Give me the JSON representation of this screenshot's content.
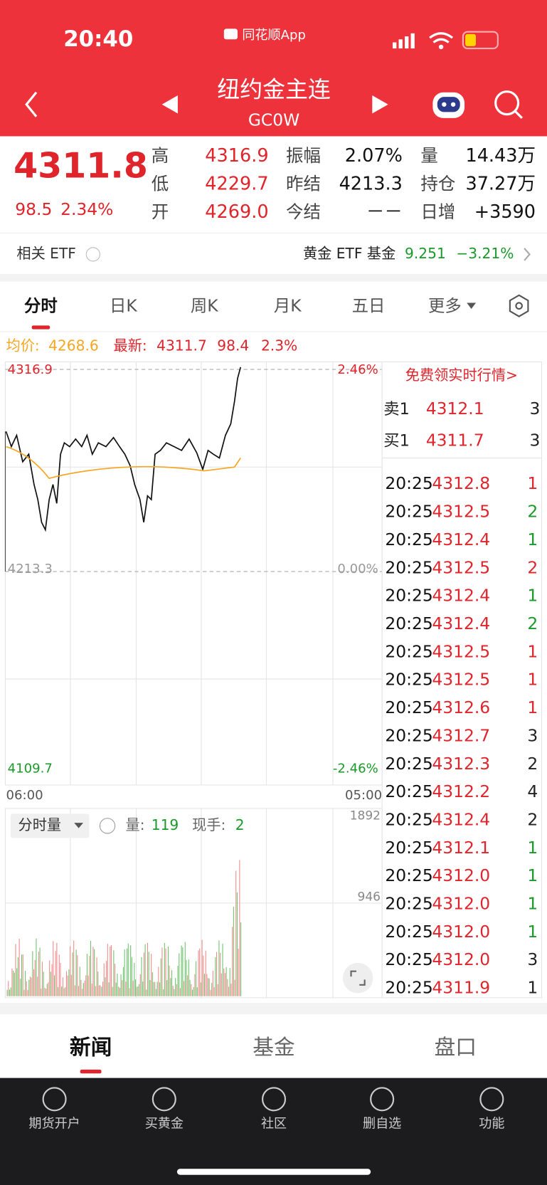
{
  "status_bar": {
    "time": "20:40",
    "app": "同花顺App"
  },
  "header": {
    "title": "纽约金主连",
    "code": "GC0W"
  },
  "quote": {
    "price": "4311.8",
    "change": "98.5",
    "change_pct": "2.34%",
    "stats": [
      [
        {
          "label": "高",
          "value": "4316.9"
        },
        {
          "label": "振幅",
          "value": "2.07%"
        },
        {
          "label": "量",
          "value": "14.43万"
        }
      ],
      [
        {
          "label": "低",
          "value": "4229.7"
        },
        {
          "label": "昨结",
          "value": "4213.3"
        },
        {
          "label": "持仓",
          "value": "37.27万"
        }
      ],
      [
        {
          "label": "开",
          "value": "4269.0"
        },
        {
          "label": "今结",
          "value": "－－"
        },
        {
          "label": "日增",
          "value": "+3590"
        }
      ]
    ]
  },
  "etf": {
    "label": "相关 ETF",
    "name": "黄金 ETF 基金",
    "price": "9.251",
    "change_pct": "−3.21%"
  },
  "chart_tabs": [
    "分时",
    "日K",
    "周K",
    "月K",
    "五日",
    "更多"
  ],
  "summary": {
    "avg_label": "均价:",
    "avg": "4268.6",
    "latest_label": "最新:",
    "latest": "4311.7",
    "change": "98.4",
    "change_pct": "2.3%"
  },
  "price_axis": {
    "high": "4316.9",
    "high_pct": "2.46%",
    "base": "4213.3",
    "base_pct": "0.00%",
    "low": "4109.7",
    "low_pct": "-2.46%"
  },
  "time_axis": [
    "06:00",
    "05:00"
  ],
  "volume": {
    "selector": "分时量",
    "vol_label": "量:",
    "vol": "119",
    "hand_label": "现手:",
    "hand": "2",
    "axis": [
      "1892",
      "946"
    ]
  },
  "order_book": {
    "promo": "免费领实时行情>",
    "ask": {
      "label": "卖1",
      "price": "4312.1",
      "volume": "3"
    },
    "bid": {
      "label": "买1",
      "price": "4311.7",
      "volume": "3"
    }
  },
  "trades": [
    {
      "time": "20:25",
      "price": "4312.8",
      "volume": "1",
      "color": "#e0242b"
    },
    {
      "time": "20:25",
      "price": "4312.5",
      "volume": "2",
      "color": "#1a9a2a"
    },
    {
      "time": "20:25",
      "price": "4312.4",
      "volume": "1",
      "color": "#1a9a2a"
    },
    {
      "time": "20:25",
      "price": "4312.5",
      "volume": "2",
      "color": "#e0242b"
    },
    {
      "time": "20:25",
      "price": "4312.4",
      "volume": "1",
      "color": "#1a9a2a"
    },
    {
      "time": "20:25",
      "price": "4312.4",
      "volume": "2",
      "color": "#1a9a2a"
    },
    {
      "time": "20:25",
      "price": "4312.5",
      "volume": "1",
      "color": "#e0242b"
    },
    {
      "time": "20:25",
      "price": "4312.5",
      "volume": "1",
      "color": "#e0242b"
    },
    {
      "time": "20:25",
      "price": "4312.6",
      "volume": "1",
      "color": "#e0242b"
    },
    {
      "time": "20:25",
      "price": "4312.7",
      "volume": "3",
      "color": "#222222"
    },
    {
      "time": "20:25",
      "price": "4312.3",
      "volume": "2",
      "color": "#222222"
    },
    {
      "time": "20:25",
      "price": "4312.2",
      "volume": "4",
      "color": "#222222"
    },
    {
      "time": "20:25",
      "price": "4312.4",
      "volume": "2",
      "color": "#222222"
    },
    {
      "time": "20:25",
      "price": "4312.1",
      "volume": "1",
      "color": "#1a9a2a"
    },
    {
      "time": "20:25",
      "price": "4312.0",
      "volume": "1",
      "color": "#1a9a2a"
    },
    {
      "time": "20:25",
      "price": "4312.0",
      "volume": "1",
      "color": "#1a9a2a"
    },
    {
      "time": "20:25",
      "price": "4312.0",
      "volume": "1",
      "color": "#1a9a2a"
    },
    {
      "time": "20:25",
      "price": "4312.0",
      "volume": "3",
      "color": "#222222"
    },
    {
      "time": "20:25",
      "price": "4311.9",
      "volume": "1",
      "color": "#222222"
    }
  ],
  "bottom_tabs": [
    "新闻",
    "基金",
    "盘口"
  ],
  "nav": [
    "期货开户",
    "买黄金",
    "社区",
    "删自选",
    "功能"
  ]
}
